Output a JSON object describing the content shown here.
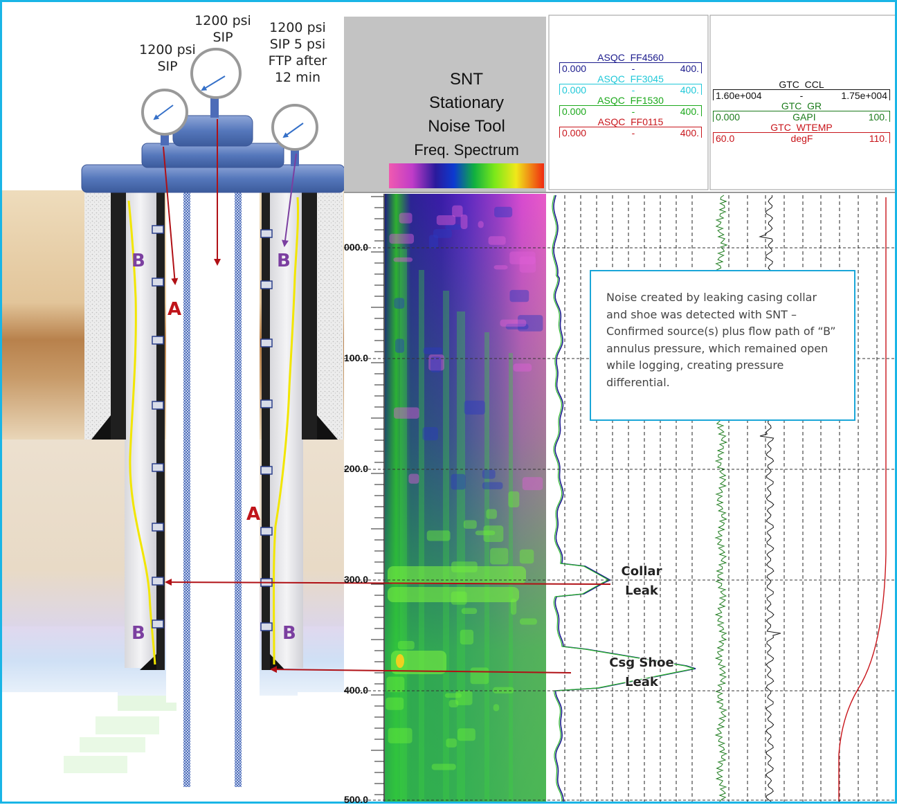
{
  "gauges": [
    {
      "id": "left",
      "label": "1200 psi SIP"
    },
    {
      "id": "center",
      "label": "1200 psi SIP"
    },
    {
      "id": "right",
      "label": "1200 psi SIP 5 psi FTP after 12 min"
    }
  ],
  "annulus_labels": {
    "b": "B",
    "a": "A"
  },
  "colors": {
    "frame": "#19b5e6",
    "arrow_red": "#b01015",
    "arrow_purple": "#7b3fa0",
    "cement_yellow": "#f2e600",
    "casing": "#1f1f1f",
    "tubing": "#3a5fb0",
    "wellhead": "#4a69ad"
  },
  "snt": {
    "title": "SNT",
    "line2": "Stationary",
    "line3": "Noise Tool",
    "subtitle": "Freq. Spectrum"
  },
  "track2_headers": [
    {
      "name": "ASQC_FF4560",
      "min": "0.000",
      "mid": "-",
      "max": "400.",
      "color": "#1a1a8c"
    },
    {
      "name": "ASQC_FF3045",
      "min": "0.000",
      "mid": "-",
      "max": "400.",
      "color": "#1fc8d8"
    },
    {
      "name": "ASQC_FF1530",
      "min": "0.000",
      "mid": "-",
      "max": "400.",
      "color": "#1aa81a"
    },
    {
      "name": "ASQC_FF0115",
      "min": "0.000",
      "mid": "-",
      "max": "400.",
      "color": "#c8141a"
    }
  ],
  "track3_headers": [
    {
      "name": "GTC_CCL",
      "min": "1.60e+004",
      "mid": "-",
      "max": "1.75e+004",
      "color": "#111111"
    },
    {
      "name": "GTC_GR",
      "min": "0.000",
      "mid": "GAPI",
      "max": "100.",
      "color": "#1a7a1a"
    },
    {
      "name": "GTC_WTEMP",
      "min": "60.0",
      "mid": "degF",
      "max": "110.",
      "color": "#c8141a"
    }
  ],
  "depth_labels": [
    "000.0",
    "100.0",
    "200.0",
    "300.0",
    "400.0",
    "500.0"
  ],
  "note": "Noise created by leaking casing collar and shoe was detected with SNT – Confirmed source(s) plus flow path of “B” annulus pressure, which remained open while logging, creating pressure differential.",
  "collar_leak": {
    "line1": "Collar",
    "line2": "Leak"
  },
  "shoe_leak": {
    "line1": "Csg Shoe",
    "line2": "Leak"
  }
}
